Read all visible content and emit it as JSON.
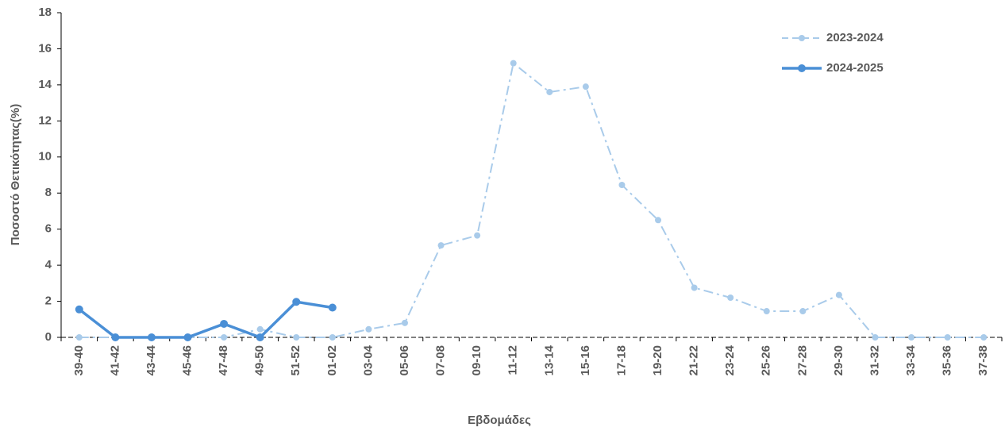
{
  "chart_data": {
    "type": "line",
    "x_label": "Εβδομάδες",
    "y_label": "Ποσοστό Θετικότητας(%)",
    "categories": [
      "39-40",
      "41-42",
      "43-44",
      "45-46",
      "47-48",
      "49-50",
      "51-52",
      "01-02",
      "03-04",
      "05-06",
      "07-08",
      "09-10",
      "11-12",
      "13-14",
      "15-16",
      "17-18",
      "19-20",
      "21-22",
      "23-24",
      "25-26",
      "27-28",
      "29-30",
      "31-32",
      "33-34",
      "35-36",
      "37-38"
    ],
    "series": [
      {
        "name": "2023-2024",
        "color": "#a9cbea",
        "dashed": true,
        "values": [
          0,
          0,
          0,
          0,
          0,
          0.45,
          0,
          0,
          0.45,
          0.8,
          5.1,
          5.65,
          15.2,
          13.6,
          13.9,
          8.45,
          6.5,
          2.75,
          2.2,
          1.45,
          1.45,
          2.35,
          0,
          0,
          0,
          0
        ]
      },
      {
        "name": "2024-2025",
        "color": "#4a8fd6",
        "dashed": false,
        "values": [
          1.55,
          0,
          0,
          0,
          0.75,
          0,
          1.97,
          1.65,
          null,
          null,
          null,
          null,
          null,
          null,
          null,
          null,
          null,
          null,
          null,
          null,
          null,
          null,
          null,
          null,
          null,
          null
        ]
      }
    ],
    "ylim": [
      0,
      18
    ],
    "yticks": [
      0,
      2,
      4,
      6,
      8,
      10,
      12,
      14,
      16,
      18
    ],
    "legend": "top-right"
  }
}
